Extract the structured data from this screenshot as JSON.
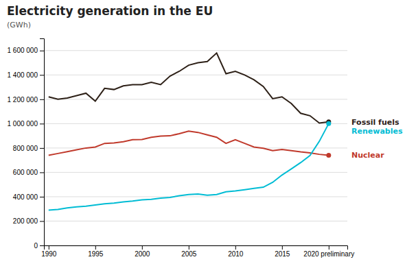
{
  "chart_data": {
    "type": "line",
    "title": "Electricity generation in the EU",
    "subtitle": "(GWh)",
    "x": [
      1990,
      1991,
      1992,
      1993,
      1994,
      1995,
      1996,
      1997,
      1998,
      1999,
      2000,
      2001,
      2002,
      2003,
      2004,
      2005,
      2006,
      2007,
      2008,
      2009,
      2010,
      2011,
      2012,
      2013,
      2014,
      2015,
      2016,
      2017,
      2018,
      2019,
      2020
    ],
    "series": [
      {
        "name": "Fossil fuels",
        "color": "#2d2017",
        "values": [
          1220000,
          1200000,
          1210000,
          1230000,
          1250000,
          1185000,
          1290000,
          1280000,
          1310000,
          1320000,
          1320000,
          1340000,
          1320000,
          1390000,
          1430000,
          1480000,
          1500000,
          1510000,
          1580000,
          1410000,
          1430000,
          1400000,
          1360000,
          1305000,
          1205000,
          1220000,
          1165000,
          1085000,
          1065000,
          1005000,
          1015000
        ]
      },
      {
        "name": "Nuclear",
        "color": "#c0392b",
        "values": [
          740000,
          755000,
          770000,
          785000,
          800000,
          808000,
          838000,
          842000,
          852000,
          868000,
          870000,
          888000,
          898000,
          900000,
          918000,
          938000,
          928000,
          908000,
          888000,
          838000,
          868000,
          838000,
          808000,
          798000,
          778000,
          788000,
          778000,
          768000,
          760000,
          748000,
          740000
        ]
      },
      {
        "name": "Renewables",
        "color": "#00bcd4",
        "values": [
          290000,
          296000,
          308000,
          316000,
          322000,
          332000,
          342000,
          348000,
          358000,
          364000,
          374000,
          378000,
          388000,
          394000,
          408000,
          418000,
          422000,
          412000,
          418000,
          440000,
          448000,
          458000,
          468000,
          478000,
          518000,
          578000,
          628000,
          680000,
          738000,
          855000,
          1000000
        ]
      }
    ],
    "xlim": [
      1989.5,
      2022
    ],
    "xticks": [
      1990,
      1995,
      2000,
      2005,
      2010,
      2015,
      {
        "value": 2020,
        "label": "2020 preliminary"
      }
    ],
    "ylim": [
      0,
      1700000
    ],
    "yticks": [
      0,
      {
        "value": 200000,
        "label": "200 000"
      },
      {
        "value": 400000,
        "label": "400 000"
      },
      {
        "value": 600000,
        "label": "600 000"
      },
      {
        "value": 800000,
        "label": "800 000"
      },
      {
        "value": 1000000,
        "label": "1 000 000"
      },
      {
        "value": 1200000,
        "label": "1 200 000"
      },
      {
        "value": 1400000,
        "label": "1 400 000"
      },
      {
        "value": 1600000,
        "label": "1 600 000"
      }
    ],
    "grid": true
  }
}
